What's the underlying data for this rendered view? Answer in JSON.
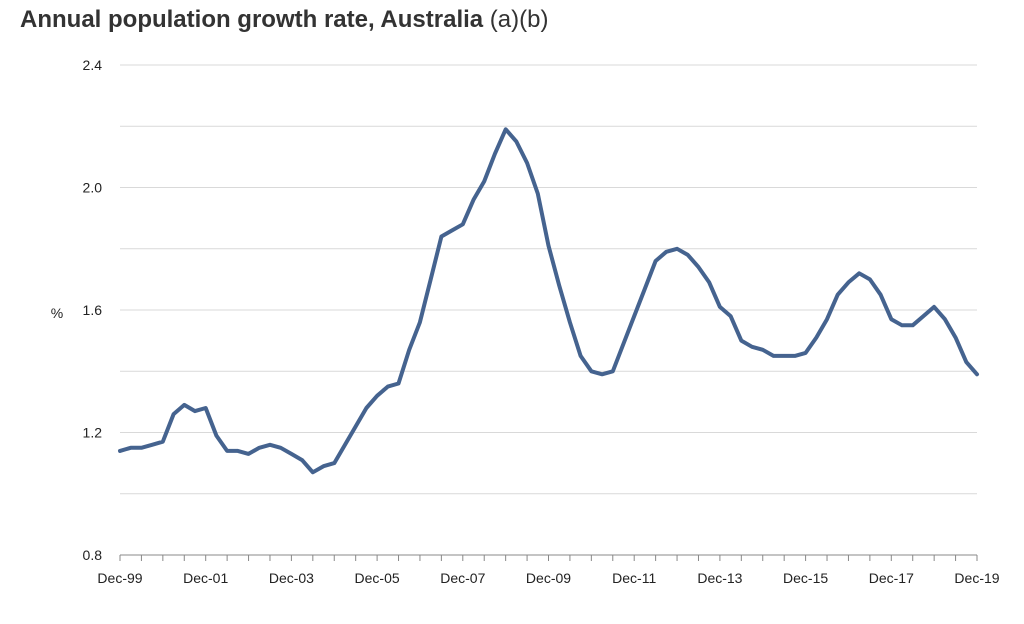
{
  "chart_data": {
    "type": "line",
    "title": "Annual population growth rate, Australia",
    "title_note": "(a)(b)",
    "xlabel": "",
    "ylabel": "%",
    "ylim": [
      0.8,
      2.4
    ],
    "yticks": [
      "0.8",
      "1.2",
      "1.6",
      "2.0",
      "2.4"
    ],
    "xticks": [
      "Dec-99",
      "Dec-01",
      "Dec-03",
      "Dec-05",
      "Dec-07",
      "Dec-09",
      "Dec-11",
      "Dec-13",
      "Dec-15",
      "Dec-17",
      "Dec-19"
    ],
    "grid": true,
    "line_color": "#45638f",
    "grid_color": "#d9d9d9",
    "series": [
      {
        "values": [
          1.14,
          1.15,
          1.15,
          1.16,
          1.17,
          1.26,
          1.29,
          1.27,
          1.28,
          1.19,
          1.14,
          1.14,
          1.13,
          1.15,
          1.16,
          1.15,
          1.13,
          1.11,
          1.07,
          1.09,
          1.1,
          1.16,
          1.22,
          1.28,
          1.32,
          1.35,
          1.36,
          1.47,
          1.56,
          1.7,
          1.84,
          1.86,
          1.88,
          1.96,
          2.02,
          2.11,
          2.19,
          2.15,
          2.08,
          1.98,
          1.81,
          1.68,
          1.56,
          1.45,
          1.4,
          1.39,
          1.4,
          1.49,
          1.58,
          1.67,
          1.76,
          1.79,
          1.8,
          1.78,
          1.74,
          1.69,
          1.61,
          1.58,
          1.5,
          1.48,
          1.47,
          1.45,
          1.45,
          1.45,
          1.46,
          1.51,
          1.57,
          1.65,
          1.69,
          1.72,
          1.7,
          1.65,
          1.57,
          1.55,
          1.55,
          1.58,
          1.61,
          1.57,
          1.51,
          1.43,
          1.39
        ]
      }
    ]
  }
}
